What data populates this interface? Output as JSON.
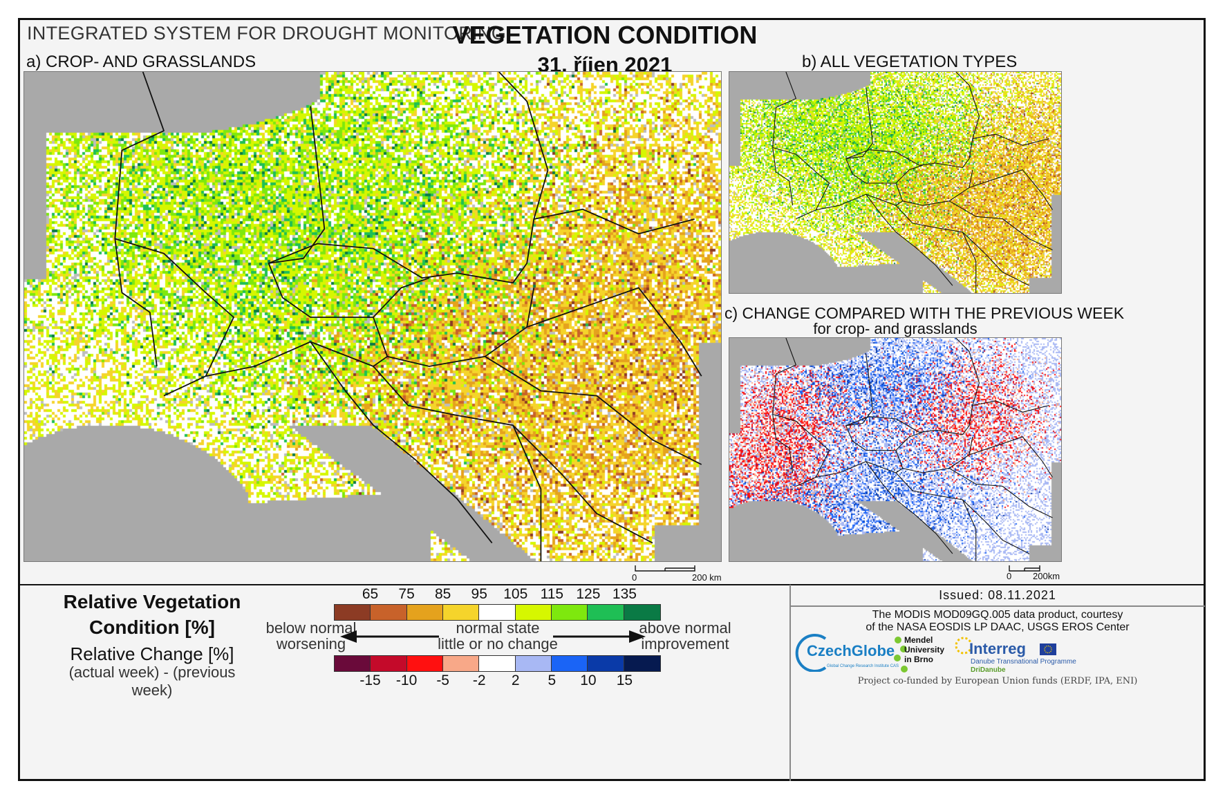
{
  "header": {
    "system_title": "INTEGRATED SYSTEM FOR DROUGHT MONITORING",
    "main_title": "VEGETATION CONDITION",
    "date": "31. říjen 2021"
  },
  "panels": {
    "a_title": "a) CROP- AND GRASSLANDS",
    "b_title": "b) ALL VEGETATION TYPES",
    "c_title": "c) CHANGE COMPARED WITH THE PREVIOUS WEEK",
    "c_subtitle": "for crop- and grasslands"
  },
  "scalebars": {
    "main_zero": "0",
    "main_km": "200 km",
    "small_zero": "0",
    "small_km": "200km"
  },
  "legend": {
    "condition_title_line1": "Relative Vegetation",
    "condition_title_line2": "Condition [%]",
    "change_title": "Relative Change [%]",
    "change_sub": "(actual week) - (previous week)",
    "condition_ticks": [
      "65",
      "75",
      "85",
      "95",
      "105",
      "115",
      "125",
      "135"
    ],
    "condition_colors": [
      "#8c3b24",
      "#c8622a",
      "#e5a21d",
      "#f5d42b",
      "#ffffff",
      "#d6f700",
      "#7ee80e",
      "#1fbf55",
      "#0a7a45"
    ],
    "change_ticks": [
      "-15",
      "-10",
      "-5",
      "-2",
      "2",
      "5",
      "10",
      "15"
    ],
    "change_colors": [
      "#6a0a3a",
      "#c40a2a",
      "#ff1010",
      "#f8a888",
      "#ffffff",
      "#a8b8f4",
      "#1a64f6",
      "#0a3aa8",
      "#061a50"
    ],
    "left_desc_line1": "below normal",
    "left_desc_line2": "worsening",
    "center_desc_line1": "normal state",
    "center_desc_line2": "little or no change",
    "right_desc_line1": "above normal",
    "right_desc_line2": "improvement"
  },
  "info": {
    "issued": "Issued: 08.11.2021",
    "modis_line1": "The MODIS MOD09GQ.005 data product, courtesy",
    "modis_line2": "of the NASA EOSDIS LP DAAC, USGS EROS Center",
    "czechglobe": "CzechGlobe",
    "czechglobe_sub": "Global Change Research Institute CAS",
    "mendel_line1": "Mendel",
    "mendel_line2": "University",
    "mendel_line3": "in Brno",
    "interreg": "Interreg",
    "interreg_sub": "Danube Transnational Programme",
    "dridanube": "DriDanube",
    "cofunded": "Project co-funded by European Union funds (ERDF, IPA, ENI)"
  },
  "map_colors": {
    "sea": "#a9a9a9",
    "no_data": "#bdbdbd",
    "border": "#111111"
  }
}
